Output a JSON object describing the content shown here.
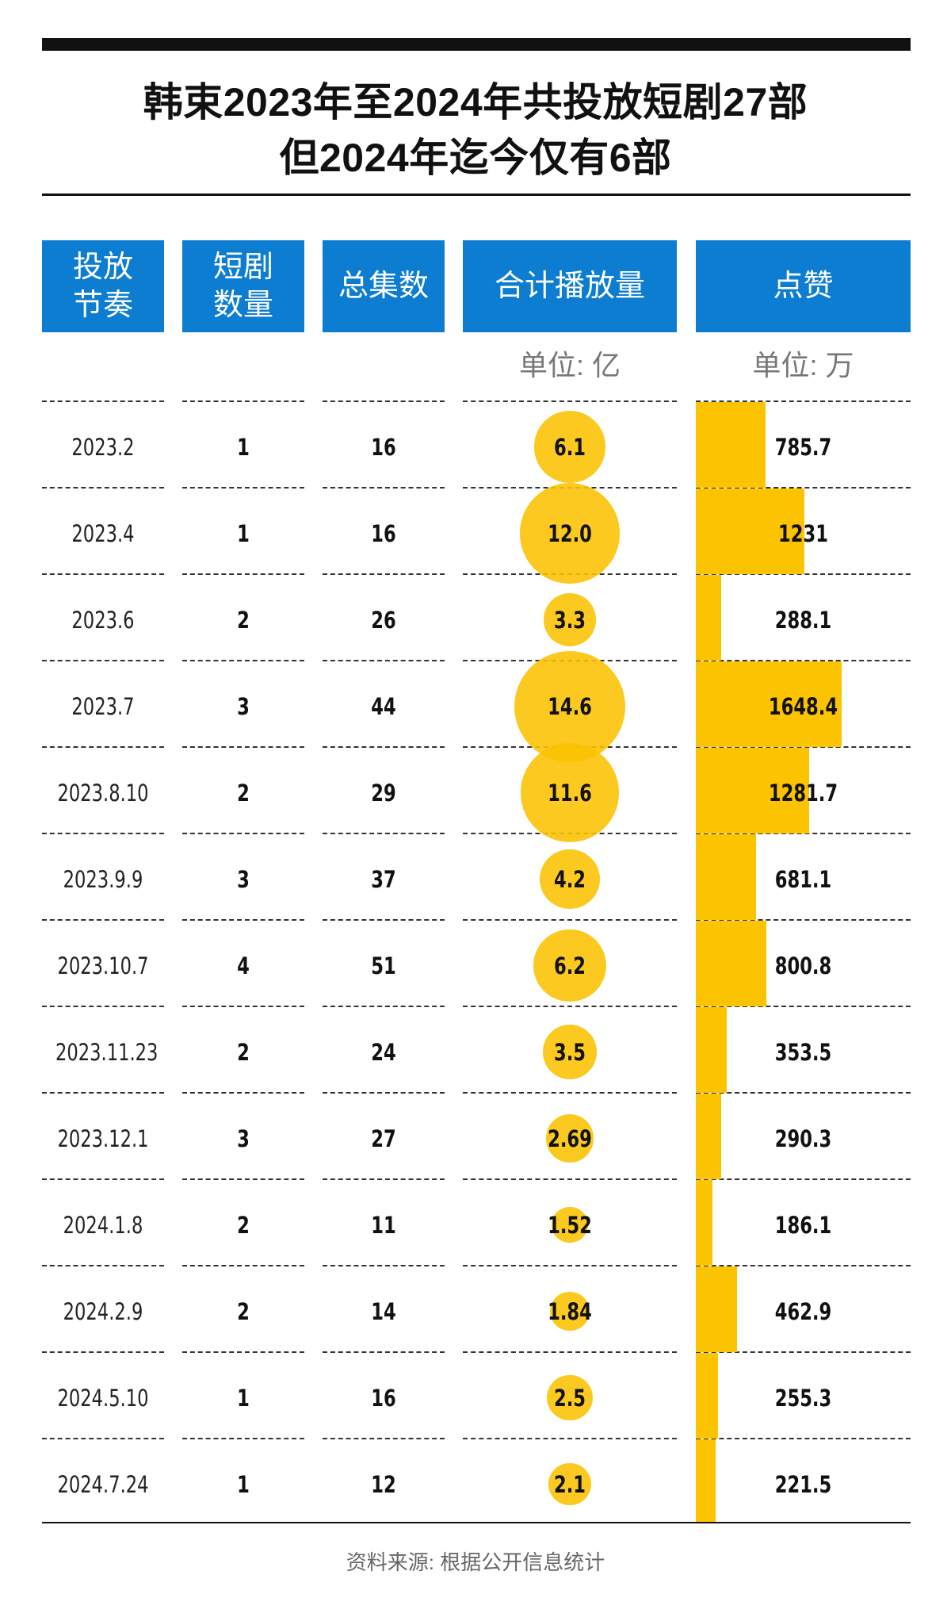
{
  "title": {
    "line1": "韩束2023年至2024年共投放短剧27部",
    "line2": "但2024年迄今仅有6部"
  },
  "headers": {
    "rhythm": [
      "投放",
      "节奏"
    ],
    "count": [
      "短剧",
      "数量"
    ],
    "episodes": "总集数",
    "plays": "合计播放量",
    "likes": "点赞"
  },
  "units": {
    "plays": "单位: 亿",
    "likes": "单位: 万"
  },
  "colors": {
    "header_bg": "#0c7dd1",
    "accent": "#fbc300"
  },
  "chart_data": {
    "type": "table",
    "columns": [
      "投放节奏",
      "短剧数量",
      "总集数",
      "合计播放量",
      "点赞"
    ],
    "rows": [
      {
        "date": "2023.2",
        "count": 1,
        "episodes": 16,
        "plays": "6.1",
        "likes": "785.7"
      },
      {
        "date": "2023.4",
        "count": 1,
        "episodes": 16,
        "plays": "12.0",
        "likes": "1231"
      },
      {
        "date": "2023.6",
        "count": 2,
        "episodes": 26,
        "plays": "3.3",
        "likes": "288.1"
      },
      {
        "date": "2023.7",
        "count": 3,
        "episodes": 44,
        "plays": "14.6",
        "likes": "1648.4"
      },
      {
        "date": "2023.8.10",
        "count": 2,
        "episodes": 29,
        "plays": "11.6",
        "likes": "1281.7"
      },
      {
        "date": "2023.9.9",
        "count": 3,
        "episodes": 37,
        "plays": "4.2",
        "likes": "681.1"
      },
      {
        "date": "2023.10.7",
        "count": 4,
        "episodes": 51,
        "plays": "6.2",
        "likes": "800.8"
      },
      {
        "date": "2023.11.23",
        "count": 2,
        "episodes": 24,
        "plays": "3.5",
        "likes": "353.5"
      },
      {
        "date": "2023.12.1",
        "count": 3,
        "episodes": 27,
        "plays": "2.69",
        "likes": "290.3"
      },
      {
        "date": "2024.1.8",
        "count": 2,
        "episodes": 11,
        "plays": "1.52",
        "likes": "186.1"
      },
      {
        "date": "2024.2.9",
        "count": 2,
        "episodes": 14,
        "plays": "1.84",
        "likes": "462.9"
      },
      {
        "date": "2024.5.10",
        "count": 1,
        "episodes": 16,
        "plays": "2.5",
        "likes": "255.3"
      },
      {
        "date": "2024.7.24",
        "count": 1,
        "episodes": 12,
        "plays": "2.1",
        "likes": "221.5"
      }
    ]
  },
  "source": "资料来源: 根据公开信息统计"
}
